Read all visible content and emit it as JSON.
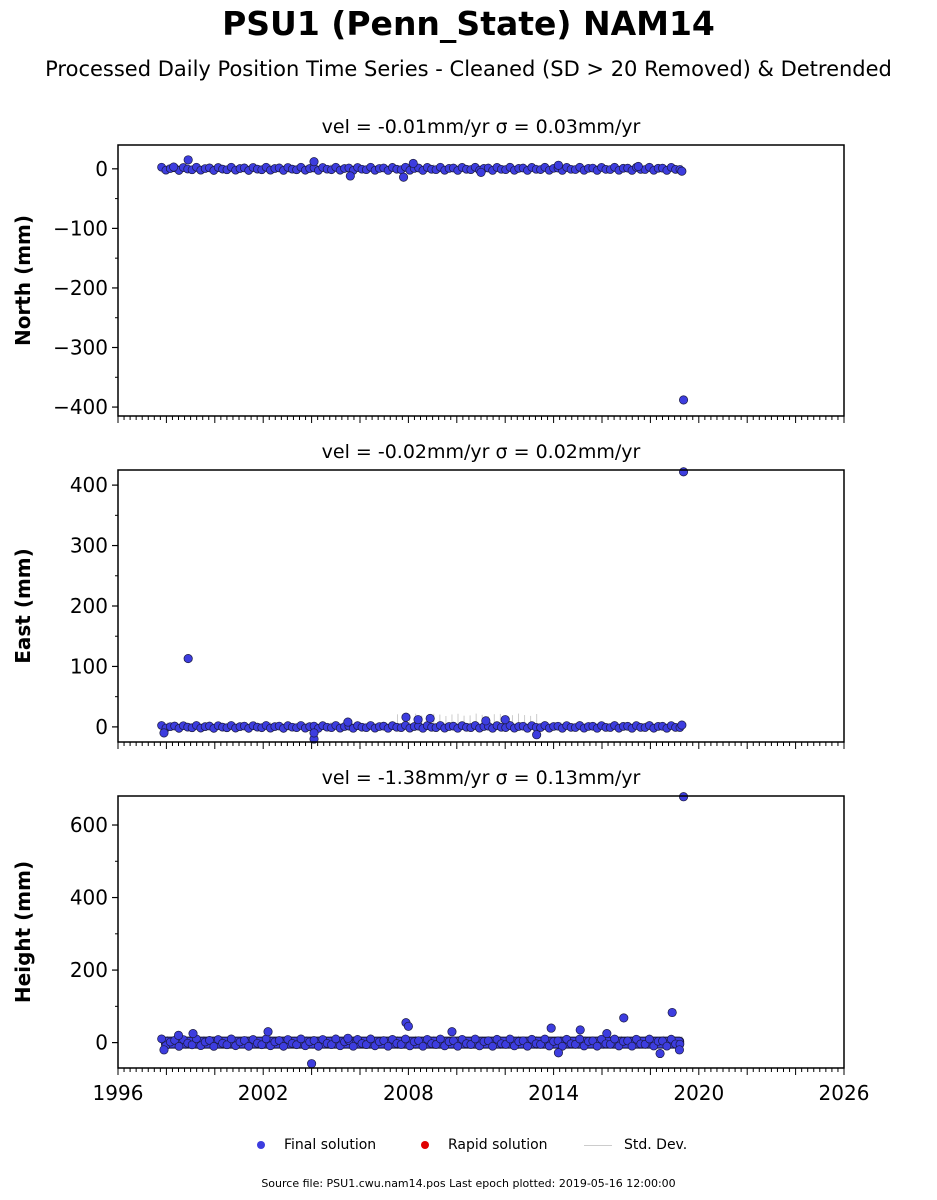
{
  "header": {
    "title": "PSU1 (Penn_State) NAM14",
    "subtitle": "Processed Daily Position Time Series - Cleaned (SD > 20 Removed) & Detrended"
  },
  "legend": {
    "final": "Final solution",
    "rapid": "Rapid solution",
    "std": "Std. Dev."
  },
  "footer": {
    "text": "Source file: PSU1.cwu.nam14.pos  Last epoch plotted: 2019-05-16 12:00:00"
  },
  "colors": {
    "final": "#3d3ddf",
    "rapid": "#e00000",
    "std": "#cccccc"
  },
  "chart_data": [
    {
      "type": "scatter",
      "title": "vel = -0.01mm/yr   σ = 0.03mm/yr",
      "ylabel": "North (mm)",
      "xlim": [
        1996,
        2026
      ],
      "ylim": [
        -415,
        40
      ],
      "yticks": [
        0,
        -100,
        -200,
        -300,
        -400
      ],
      "ytick_labels": [
        "0",
        "−100",
        "−200",
        "−300",
        "−400"
      ],
      "band": {
        "x_start": 1997.8,
        "x_end": 2019.37,
        "min": -4,
        "max": 4
      },
      "series": [
        {
          "x": [
            1998.3,
            1998.9,
            2004.1,
            2005.6,
            2007.8,
            2008.2,
            2011.0,
            2014.2,
            2017.5,
            2019.3,
            2019.37
          ],
          "values": [
            3,
            15,
            12,
            -12,
            -14,
            9,
            -6,
            6,
            4,
            -4,
            -388
          ]
        }
      ]
    },
    {
      "type": "scatter",
      "title": "vel = -0.02mm/yr   σ = 0.02mm/yr",
      "ylabel": "East (mm)",
      "xlim": [
        1996,
        2026
      ],
      "ylim": [
        -25,
        425
      ],
      "yticks": [
        0,
        100,
        200,
        300,
        400
      ],
      "ytick_labels": [
        "0",
        "100",
        "200",
        "300",
        "400"
      ],
      "band": {
        "x_start": 1997.8,
        "x_end": 2019.37,
        "min": -3,
        "max": 4
      },
      "series": [
        {
          "x": [
            1997.9,
            1998.9,
            2004.1,
            2004.1,
            2005.5,
            2007.9,
            2008.4,
            2008.9,
            2011.2,
            2012.0,
            2013.3,
            2019.3,
            2019.37
          ],
          "values": [
            -10,
            113,
            -20,
            -10,
            8,
            16,
            12,
            14,
            10,
            12,
            -13,
            3,
            422
          ]
        }
      ]
    },
    {
      "type": "scatter",
      "title": "vel = -1.38mm/yr   σ = 0.13mm/yr",
      "ylabel": "Height (mm)",
      "xlim": [
        1996,
        2026
      ],
      "ylim": [
        -70,
        680
      ],
      "yticks": [
        0,
        200,
        400,
        600
      ],
      "ytick_labels": [
        "0",
        "200",
        "400",
        "600"
      ],
      "band": {
        "x_start": 1997.8,
        "x_end": 2019.37,
        "min": -15,
        "max": 15
      },
      "series": [
        {
          "x": [
            1997.9,
            1998.5,
            1999.1,
            2002.2,
            2004.0,
            2005.5,
            2007.9,
            2008.0,
            2009.8,
            2013.9,
            2014.2,
            2015.1,
            2016.2,
            2016.9,
            2018.4,
            2018.9,
            2019.2,
            2019.37
          ],
          "values": [
            -20,
            20,
            25,
            30,
            -58,
            12,
            55,
            45,
            30,
            40,
            -28,
            35,
            25,
            68,
            -30,
            83,
            -20,
            678
          ]
        }
      ]
    }
  ],
  "x_axis": {
    "ticks": [
      1996,
      2002,
      2008,
      2014,
      2020,
      2026
    ],
    "labels": [
      "1996",
      "2002",
      "2008",
      "2014",
      "2020",
      "2026"
    ]
  }
}
